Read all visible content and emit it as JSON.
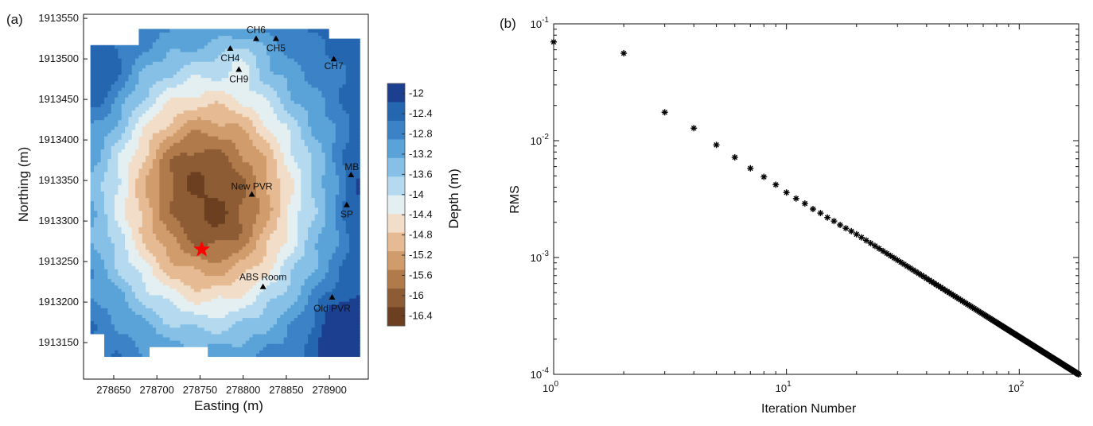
{
  "panel_a": {
    "label": "(a)",
    "xlabel": "Easting (m)",
    "ylabel": "Northing (m)",
    "colorbar_label": "Depth (m)"
  },
  "panel_b": {
    "label": "(b)",
    "xlabel": "Iteration Number",
    "ylabel": "RMS"
  },
  "chart_data": [
    {
      "type": "heatmap",
      "subtype": "filled-contour depth map",
      "xlabel": "Easting (m)",
      "ylabel": "Northing (m)",
      "x_ticks": [
        278650,
        278700,
        278750,
        278800,
        278850,
        278900
      ],
      "y_ticks": [
        1913150,
        1913200,
        1913250,
        1913300,
        1913350,
        1913400,
        1913450,
        1913500,
        1913550
      ],
      "xlim": [
        278615,
        278945
      ],
      "ylim": [
        1913105,
        1913555
      ],
      "colorbar": {
        "label": "Depth (m)",
        "ticks": [
          -12,
          -12.4,
          -12.8,
          -13.2,
          -13.6,
          -14,
          -14.4,
          -14.8,
          -15.2,
          -15.6,
          -16,
          -16.4
        ],
        "range": [
          -11.8,
          -16.6
        ],
        "colors": [
          "#1c3f90",
          "#2566b0",
          "#3b83c6",
          "#5aa3d8",
          "#86c0e6",
          "#b5daf0",
          "#e4eff2",
          "#f2ddc8",
          "#e6bb93",
          "#d09c6c",
          "#b07a4b",
          "#8d5c35",
          "#6b3f20"
        ]
      },
      "sites": [
        {
          "name": "CH6",
          "x": 278815,
          "y": 1913525
        },
        {
          "name": "CH5",
          "x": 278838,
          "y": 1913525
        },
        {
          "name": "CH4",
          "x": 278785,
          "y": 1913513
        },
        {
          "name": "CH9",
          "x": 278795,
          "y": 1913487
        },
        {
          "name": "CH7",
          "x": 278905,
          "y": 1913500
        },
        {
          "name": "MB",
          "x": 278925,
          "y": 1913357
        },
        {
          "name": "New PVR",
          "x": 278810,
          "y": 1913333
        },
        {
          "name": "SP",
          "x": 278920,
          "y": 1913320
        },
        {
          "name": "ABS Room",
          "x": 278823,
          "y": 1913219
        },
        {
          "name": "Old PVR",
          "x": 278903,
          "y": 1913206
        }
      ],
      "marker": {
        "type": "red-star",
        "x": 278752,
        "y": 1913265,
        "color": "#ff0000"
      }
    },
    {
      "type": "scatter",
      "xlabel": "Iteration Number",
      "ylabel": "RMS",
      "x_scale": "log",
      "y_scale": "log",
      "xlim": [
        1,
        180
      ],
      "ylim": [
        0.0001,
        0.1
      ],
      "x_ticks": [
        "10^0",
        "10^1",
        "10^2"
      ],
      "y_ticks": [
        "10^-4",
        "10^-3",
        "10^-2",
        "10^-1"
      ],
      "marker": "asterisk",
      "series": [
        {
          "x_range": [
            1,
            180
          ],
          "points_listed": [
            [
              1,
              0.07
            ],
            [
              2,
              0.056
            ],
            [
              3,
              0.0175
            ],
            [
              4,
              0.0128
            ],
            [
              5,
              0.0092
            ],
            [
              6,
              0.0072
            ],
            [
              7,
              0.0058
            ],
            [
              8,
              0.0049
            ],
            [
              9,
              0.0042
            ],
            [
              10,
              0.0036
            ],
            [
              11,
              0.0032
            ],
            [
              12,
              0.0029
            ],
            [
              13,
              0.0026
            ],
            [
              14,
              0.0024
            ],
            [
              15,
              0.0022
            ],
            [
              16,
              0.00205
            ],
            [
              17,
              0.0019
            ],
            [
              18,
              0.00178
            ],
            [
              19,
              0.00168
            ],
            [
              20,
              0.00158
            ]
          ],
          "trend": "RMS decreases as a power law, roughly RMS = 0.028 * n^-1.08 for n >= 3, reaching 1e-4 at n = 180"
        }
      ]
    }
  ]
}
